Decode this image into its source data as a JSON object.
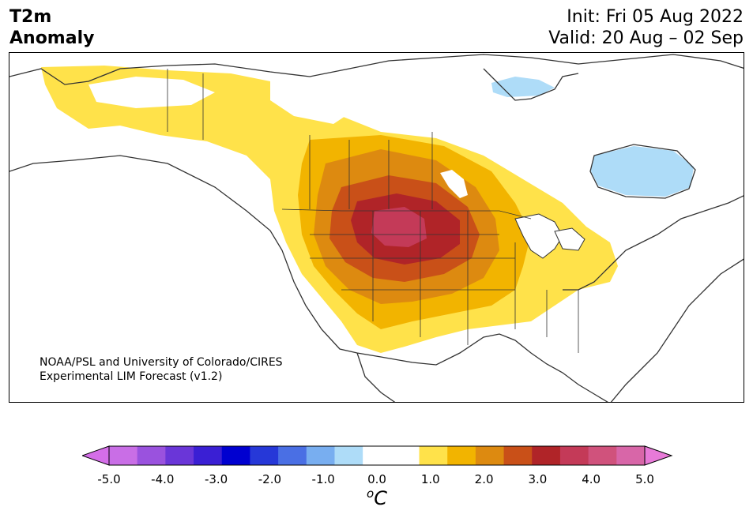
{
  "title": {
    "left_line1": "T2m",
    "left_line2": "Anomaly",
    "init": "Init: Fri 05 Aug 2022",
    "valid": "Valid: 20 Aug – 02 Sep"
  },
  "credit": {
    "line1": "NOAA/PSL and University of Colorado/CIRES",
    "line2": "Experimental LIM Forecast (v1.2)"
  },
  "colorbar": {
    "unit_base": "C",
    "unit_sup": "o",
    "tick_labels": [
      "-5.0",
      "-4.0",
      "-3.0",
      "-2.0",
      "-1.0",
      "0.0",
      "1.0",
      "2.0",
      "3.0",
      "4.0",
      "5.0"
    ],
    "min_arrow_color": "#d46ee8",
    "max_arrow_color": "#e87ad8",
    "colors": [
      "#c96ee6",
      "#9a52de",
      "#6a36d8",
      "#3a1fd4",
      "#0000d0",
      "#2638d8",
      "#4a6fe4",
      "#78aef0",
      "#aedcf8",
      "#ffffff",
      "#ffffff",
      "#ffe24a",
      "#f2b400",
      "#dd8a10",
      "#c95018",
      "#b02428",
      "#c43a58",
      "#d0527c",
      "#d866a8"
    ]
  },
  "legend_colors": {
    "anom_0_5_1_0": "#ffe24a",
    "anom_1_0_1_5": "#f2b400",
    "anom_1_5_2_0": "#dd8a10",
    "anom_2_0_2_5": "#c95018",
    "anom_2_5_3_0": "#b02428",
    "anom_3_0_3_5": "#c43a58",
    "cold_0_5_1_0": "#aedcf8",
    "coastline": "#333333"
  }
}
